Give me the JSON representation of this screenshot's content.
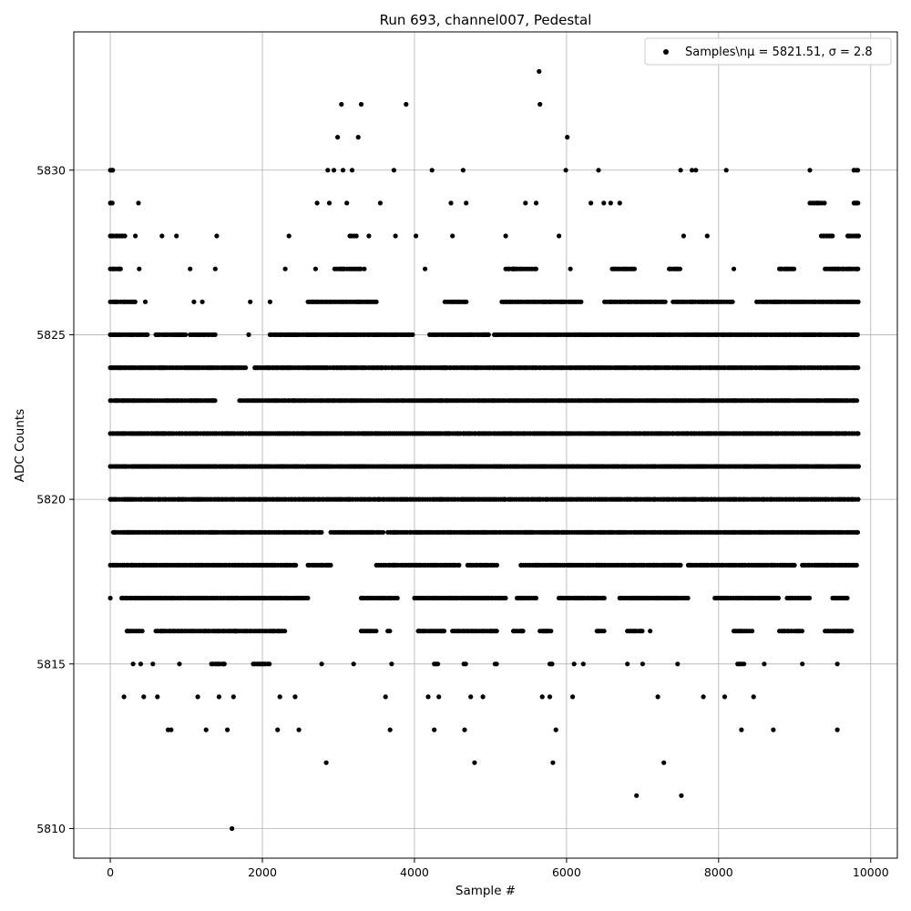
{
  "chart_data": {
    "type": "scatter",
    "title": "Run 693, channel007, Pedestal",
    "xlabel": "Sample #",
    "ylabel": "ADC Counts",
    "xlim": [
      -480,
      10350
    ],
    "ylim": [
      5809.1,
      5834.2
    ],
    "xticks": [
      0,
      2000,
      4000,
      6000,
      8000,
      10000
    ],
    "xtick_labels": [
      "0",
      "2000",
      "4000",
      "6000",
      "8000",
      "10000"
    ],
    "yticks": [
      5810,
      5815,
      5820,
      5825,
      5830
    ],
    "ytick_labels": [
      "5810",
      "5815",
      "5820",
      "5825",
      "5830"
    ],
    "grid": true,
    "legend": {
      "placement": "top-right",
      "label_prefix": "Samples\\n",
      "label_formula": "μ = 5821.51, σ = 2.8"
    },
    "series": [
      {
        "name": "Samples\\nμ = 5821.51, σ = 2.8",
        "color": "#000000",
        "marker": "circle",
        "mean": 5821.51,
        "sigma": 2.8,
        "n_samples": 9840,
        "points": [
          [
            0,
            5817
          ],
          [
            30,
            5830
          ],
          [
            10,
            5829
          ],
          [
            20,
            5828
          ],
          [
            50,
            5827
          ],
          [
            80,
            5826
          ],
          [
            120,
            5825
          ],
          [
            140,
            5824
          ],
          [
            160,
            5823
          ],
          [
            180,
            5822
          ],
          [
            200,
            5821
          ],
          [
            230,
            5820
          ],
          [
            250,
            5819
          ],
          [
            280,
            5818
          ],
          [
            210,
            5817
          ],
          [
            230,
            5816
          ],
          [
            180,
            5814
          ],
          [
            370,
            5829
          ],
          [
            330,
            5828
          ],
          [
            380,
            5827
          ],
          [
            460,
            5826
          ],
          [
            300,
            5815
          ],
          [
            400,
            5815
          ],
          [
            440,
            5814
          ],
          [
            560,
            5815
          ],
          [
            620,
            5814
          ],
          [
            680,
            5828
          ],
          [
            760,
            5813
          ],
          [
            800,
            5813
          ],
          [
            870,
            5828
          ],
          [
            910,
            5815
          ],
          [
            1050,
            5827
          ],
          [
            1100,
            5826
          ],
          [
            1150,
            5814
          ],
          [
            1210,
            5826
          ],
          [
            1260,
            5813
          ],
          [
            1330,
            5815
          ],
          [
            1380,
            5827
          ],
          [
            1400,
            5828
          ],
          [
            1430,
            5814
          ],
          [
            1500,
            5815
          ],
          [
            1540,
            5813
          ],
          [
            1600,
            5810
          ],
          [
            1620,
            5814
          ],
          [
            1650,
            5816
          ],
          [
            1840,
            5826
          ],
          [
            1820,
            5825
          ],
          [
            1880,
            5815
          ],
          [
            1990,
            5815
          ],
          [
            2100,
            5826
          ],
          [
            2200,
            5813
          ],
          [
            2230,
            5814
          ],
          [
            2300,
            5827
          ],
          [
            2350,
            5828
          ],
          [
            2430,
            5814
          ],
          [
            2480,
            5813
          ],
          [
            2700,
            5827
          ],
          [
            2720,
            5829
          ],
          [
            2780,
            5815
          ],
          [
            2840,
            5812
          ],
          [
            2860,
            5830
          ],
          [
            2880,
            5829
          ],
          [
            2940,
            5830
          ],
          [
            2990,
            5831
          ],
          [
            3040,
            5832
          ],
          [
            3060,
            5830
          ],
          [
            3110,
            5829
          ],
          [
            3180,
            5830
          ],
          [
            3200,
            5815
          ],
          [
            3260,
            5831
          ],
          [
            3300,
            5832
          ],
          [
            3340,
            5827
          ],
          [
            3400,
            5828
          ],
          [
            3550,
            5829
          ],
          [
            3620,
            5814
          ],
          [
            3680,
            5813
          ],
          [
            3700,
            5815
          ],
          [
            3730,
            5830
          ],
          [
            3750,
            5828
          ],
          [
            3890,
            5832
          ],
          [
            4020,
            5828
          ],
          [
            4140,
            5827
          ],
          [
            4180,
            5814
          ],
          [
            4230,
            5830
          ],
          [
            4260,
            5813
          ],
          [
            4320,
            5814
          ],
          [
            4480,
            5829
          ],
          [
            4500,
            5828
          ],
          [
            4640,
            5830
          ],
          [
            4660,
            5813
          ],
          [
            4680,
            5829
          ],
          [
            4740,
            5814
          ],
          [
            4790,
            5812
          ],
          [
            4900,
            5814
          ],
          [
            5000,
            5816
          ],
          [
            5200,
            5828
          ],
          [
            5300,
            5827
          ],
          [
            5460,
            5829
          ],
          [
            5600,
            5829
          ],
          [
            5640,
            5833
          ],
          [
            5650,
            5832
          ],
          [
            5680,
            5814
          ],
          [
            5780,
            5814
          ],
          [
            5800,
            5815
          ],
          [
            5820,
            5812
          ],
          [
            5860,
            5813
          ],
          [
            5900,
            5828
          ],
          [
            5990,
            5830
          ],
          [
            6010,
            5831
          ],
          [
            6050,
            5827
          ],
          [
            6080,
            5814
          ],
          [
            6100,
            5815
          ],
          [
            6220,
            5815
          ],
          [
            6320,
            5829
          ],
          [
            6420,
            5830
          ],
          [
            6490,
            5829
          ],
          [
            6580,
            5829
          ],
          [
            6700,
            5829
          ],
          [
            6800,
            5815
          ],
          [
            6920,
            5811
          ],
          [
            7000,
            5815
          ],
          [
            7100,
            5816
          ],
          [
            7200,
            5814
          ],
          [
            7280,
            5812
          ],
          [
            7360,
            5827
          ],
          [
            7460,
            5815
          ],
          [
            7500,
            5830
          ],
          [
            7510,
            5811
          ],
          [
            7540,
            5828
          ],
          [
            7650,
            5830
          ],
          [
            7700,
            5830
          ],
          [
            7800,
            5814
          ],
          [
            7850,
            5828
          ],
          [
            8100,
            5830
          ],
          [
            8080,
            5814
          ],
          [
            8200,
            5827
          ],
          [
            8300,
            5813
          ],
          [
            8460,
            5814
          ],
          [
            8600,
            5815
          ],
          [
            8720,
            5813
          ],
          [
            8880,
            5827
          ],
          [
            9100,
            5815
          ],
          [
            9200,
            5830
          ],
          [
            9300,
            5829
          ],
          [
            9380,
            5828
          ],
          [
            9560,
            5815
          ],
          [
            9560,
            5813
          ],
          [
            9640,
            5827
          ],
          [
            9700,
            5828
          ],
          [
            9780,
            5830
          ],
          [
            9820,
            5829
          ],
          [
            9840,
            5828
          ]
        ]
      }
    ],
    "dense_bands": [
      {
        "y": 5830,
        "ranges": [
          [
            0,
            50
          ],
          [
            9780,
            9840
          ]
        ]
      },
      {
        "y": 5829,
        "ranges": [
          [
            0,
            30
          ],
          [
            9200,
            9400
          ],
          [
            9780,
            9840
          ]
        ]
      },
      {
        "y": 5828,
        "ranges": [
          [
            0,
            200
          ],
          [
            3150,
            3250
          ],
          [
            9350,
            9500
          ],
          [
            9700,
            9840
          ]
        ]
      },
      {
        "y": 5827,
        "ranges": [
          [
            0,
            150
          ],
          [
            2950,
            3300
          ],
          [
            5200,
            5600
          ],
          [
            6600,
            6900
          ],
          [
            7350,
            7500
          ],
          [
            8800,
            9000
          ],
          [
            9400,
            9840
          ]
        ]
      },
      {
        "y": 5826,
        "ranges": [
          [
            0,
            350
          ],
          [
            2600,
            3500
          ],
          [
            4400,
            4700
          ],
          [
            5150,
            6200
          ],
          [
            6500,
            7300
          ],
          [
            7400,
            8200
          ],
          [
            8500,
            9840
          ]
        ]
      },
      {
        "y": 5825,
        "ranges": [
          [
            0,
            500
          ],
          [
            600,
            1000
          ],
          [
            1050,
            1400
          ],
          [
            2100,
            4000
          ],
          [
            4200,
            5000
          ],
          [
            5050,
            9840
          ]
        ]
      },
      {
        "y": 5824,
        "ranges": [
          [
            0,
            1800
          ],
          [
            1900,
            9840
          ]
        ]
      },
      {
        "y": 5823,
        "ranges": [
          [
            0,
            1400
          ],
          [
            1700,
            9840
          ]
        ]
      },
      {
        "y": 5822,
        "ranges": [
          [
            0,
            9840
          ]
        ]
      },
      {
        "y": 5821,
        "ranges": [
          [
            0,
            9840
          ]
        ]
      },
      {
        "y": 5820,
        "ranges": [
          [
            0,
            9840
          ]
        ]
      },
      {
        "y": 5819,
        "ranges": [
          [
            40,
            2800
          ],
          [
            2900,
            3600
          ],
          [
            3650,
            9840
          ]
        ]
      },
      {
        "y": 5818,
        "ranges": [
          [
            0,
            2450
          ],
          [
            2600,
            2900
          ],
          [
            3500,
            4600
          ],
          [
            4700,
            5100
          ],
          [
            5400,
            7500
          ],
          [
            7600,
            9000
          ],
          [
            9100,
            9840
          ]
        ]
      },
      {
        "y": 5817,
        "ranges": [
          [
            150,
            2600
          ],
          [
            3300,
            3800
          ],
          [
            4000,
            5200
          ],
          [
            5350,
            5600
          ],
          [
            5900,
            6500
          ],
          [
            6700,
            7600
          ],
          [
            7950,
            8800
          ],
          [
            8900,
            9200
          ],
          [
            9500,
            9700
          ]
        ]
      },
      {
        "y": 5816,
        "ranges": [
          [
            220,
            420
          ],
          [
            600,
            2300
          ],
          [
            3300,
            3500
          ],
          [
            3650,
            3700
          ],
          [
            4050,
            4400
          ],
          [
            4500,
            5100
          ],
          [
            5300,
            5450
          ],
          [
            5650,
            5800
          ],
          [
            6400,
            6500
          ],
          [
            6800,
            7000
          ],
          [
            8200,
            8450
          ],
          [
            8800,
            9100
          ],
          [
            9400,
            9750
          ]
        ]
      },
      {
        "y": 5815,
        "ranges": [
          [
            1350,
            1500
          ],
          [
            1900,
            2100
          ],
          [
            4260,
            4320
          ],
          [
            4650,
            4700
          ],
          [
            5060,
            5100
          ],
          [
            5780,
            5830
          ],
          [
            8250,
            8350
          ]
        ]
      }
    ]
  }
}
